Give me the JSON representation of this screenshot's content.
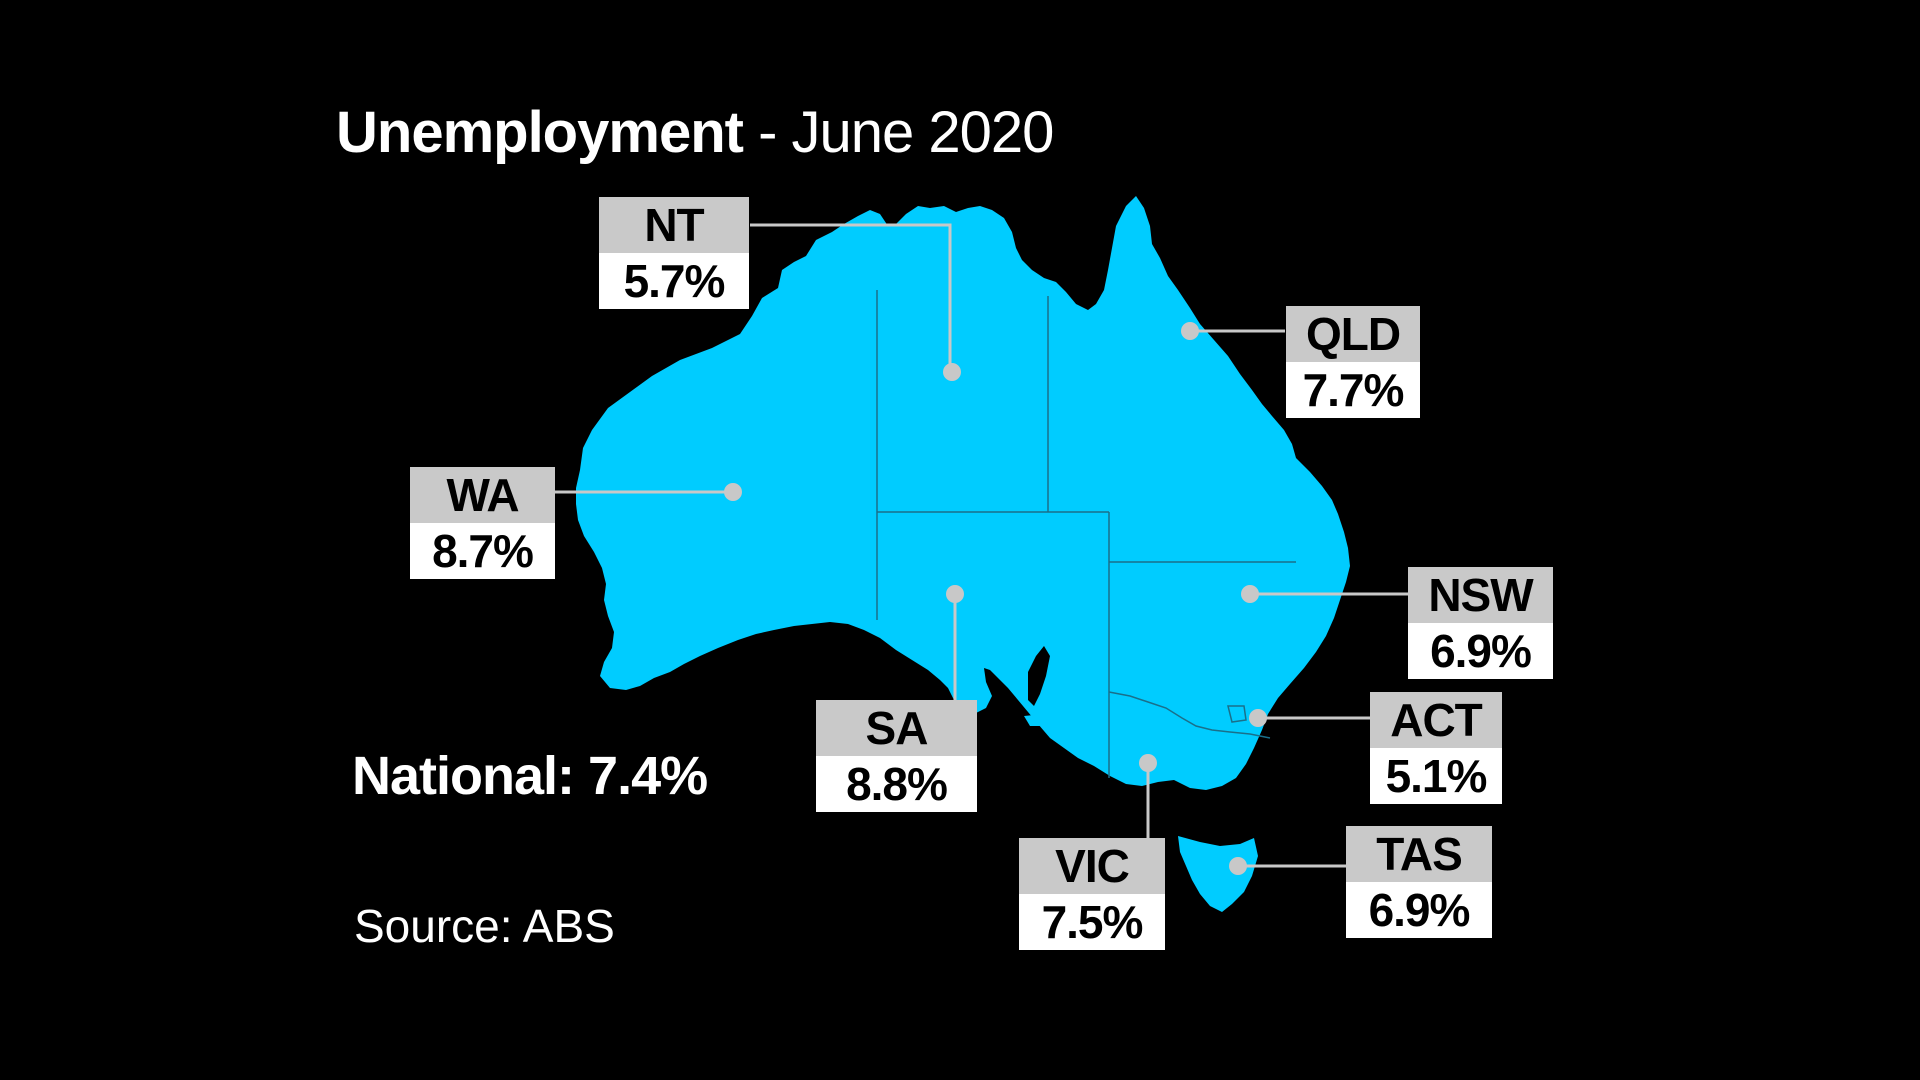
{
  "title": {
    "main": "Unemployment",
    "separator": " - ",
    "sub": "June 2020"
  },
  "national": {
    "label": "National:",
    "value": "7.4%"
  },
  "source": "Source: ABS",
  "colors": {
    "background": "#000000",
    "land": "#00ccff",
    "border": "#1a6f8a",
    "leader": "#c8c8c8",
    "label_header": "#c9c9c9",
    "label_value": "#ffffff"
  },
  "states": [
    {
      "code": "NT",
      "rate": "5.7%"
    },
    {
      "code": "QLD",
      "rate": "7.7%"
    },
    {
      "code": "WA",
      "rate": "8.7%"
    },
    {
      "code": "NSW",
      "rate": "6.9%"
    },
    {
      "code": "SA",
      "rate": "8.8%"
    },
    {
      "code": "ACT",
      "rate": "5.1%"
    },
    {
      "code": "VIC",
      "rate": "7.5%"
    },
    {
      "code": "TAS",
      "rate": "6.9%"
    }
  ]
}
